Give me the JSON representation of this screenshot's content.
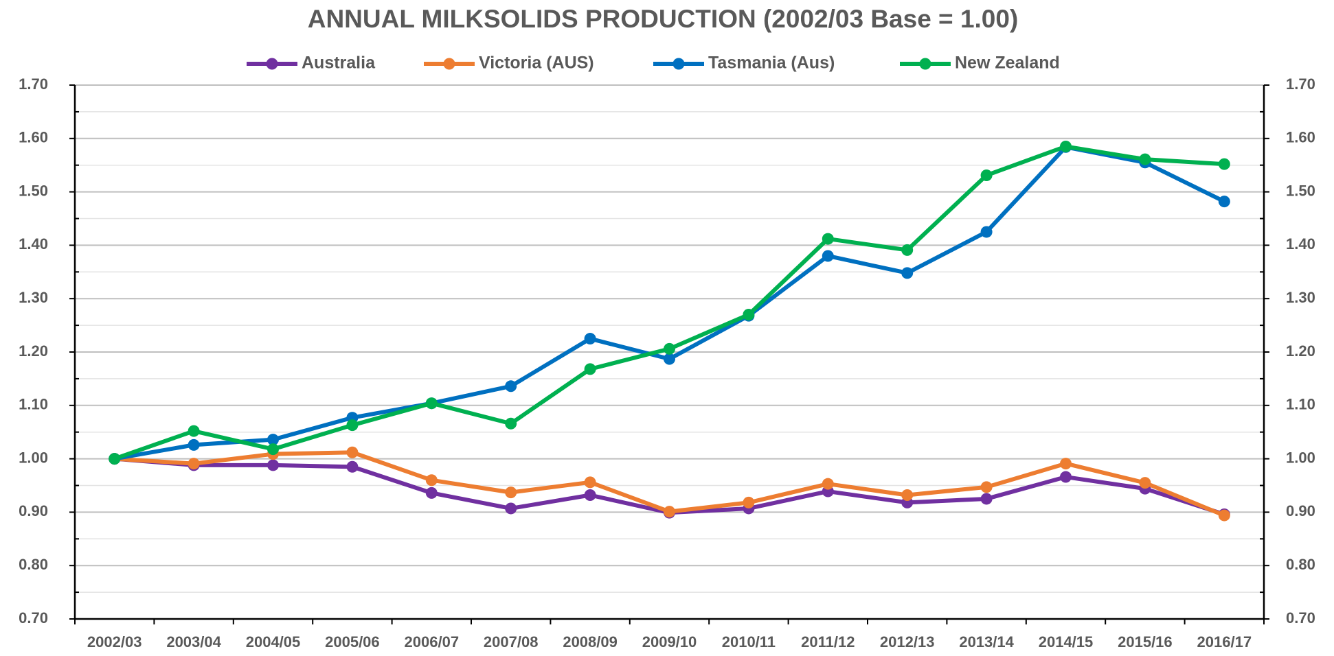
{
  "chart_data": {
    "type": "line",
    "title": "ANNUAL MILKSOLIDS PRODUCTION (2002/03 Base = 1.00)",
    "categories": [
      "2002/03",
      "2003/04",
      "2004/05",
      "2005/06",
      "2006/07",
      "2007/08",
      "2008/09",
      "2009/10",
      "2010/11",
      "2011/12",
      "2012/13",
      "2013/14",
      "2014/15",
      "2015/16",
      "2016/17"
    ],
    "series": [
      {
        "name": "Australia",
        "color": "#7030a0",
        "values": [
          1.0,
          0.988,
          0.988,
          0.985,
          0.936,
          0.907,
          0.932,
          0.899,
          0.907,
          0.939,
          0.918,
          0.925,
          0.966,
          0.944,
          0.896
        ]
      },
      {
        "name": "Victoria (AUS)",
        "color": "#ed7d31",
        "values": [
          1.0,
          0.991,
          1.009,
          1.012,
          0.96,
          0.937,
          0.956,
          0.901,
          0.918,
          0.953,
          0.932,
          0.947,
          0.991,
          0.955,
          0.894
        ]
      },
      {
        "name": "Tasmania (Aus)",
        "color": "#0070c0",
        "values": [
          1.0,
          1.026,
          1.036,
          1.077,
          1.104,
          1.136,
          1.225,
          1.187,
          1.268,
          1.38,
          1.348,
          1.425,
          1.584,
          1.555,
          1.482
        ]
      },
      {
        "name": "New Zealand",
        "color": "#00b050",
        "values": [
          1.0,
          1.052,
          1.018,
          1.063,
          1.104,
          1.066,
          1.168,
          1.206,
          1.27,
          1.412,
          1.391,
          1.531,
          1.585,
          1.561,
          1.552
        ]
      }
    ],
    "ylim": [
      0.7,
      1.7
    ],
    "yticks": [
      {
        "value": 0.7,
        "label": "0.70"
      },
      {
        "value": 0.8,
        "label": "0.80"
      },
      {
        "value": 0.9,
        "label": "0.90"
      },
      {
        "value": 1.0,
        "label": "1.00"
      },
      {
        "value": 1.1,
        "label": "1.10"
      },
      {
        "value": 1.2,
        "label": "1.20"
      },
      {
        "value": 1.3,
        "label": "1.30"
      },
      {
        "value": 1.4,
        "label": "1.40"
      },
      {
        "value": 1.5,
        "label": "1.50"
      },
      {
        "value": 1.6,
        "label": "1.60"
      },
      {
        "value": 1.7,
        "label": "1.70"
      }
    ],
    "grid": true,
    "legend": "top"
  }
}
